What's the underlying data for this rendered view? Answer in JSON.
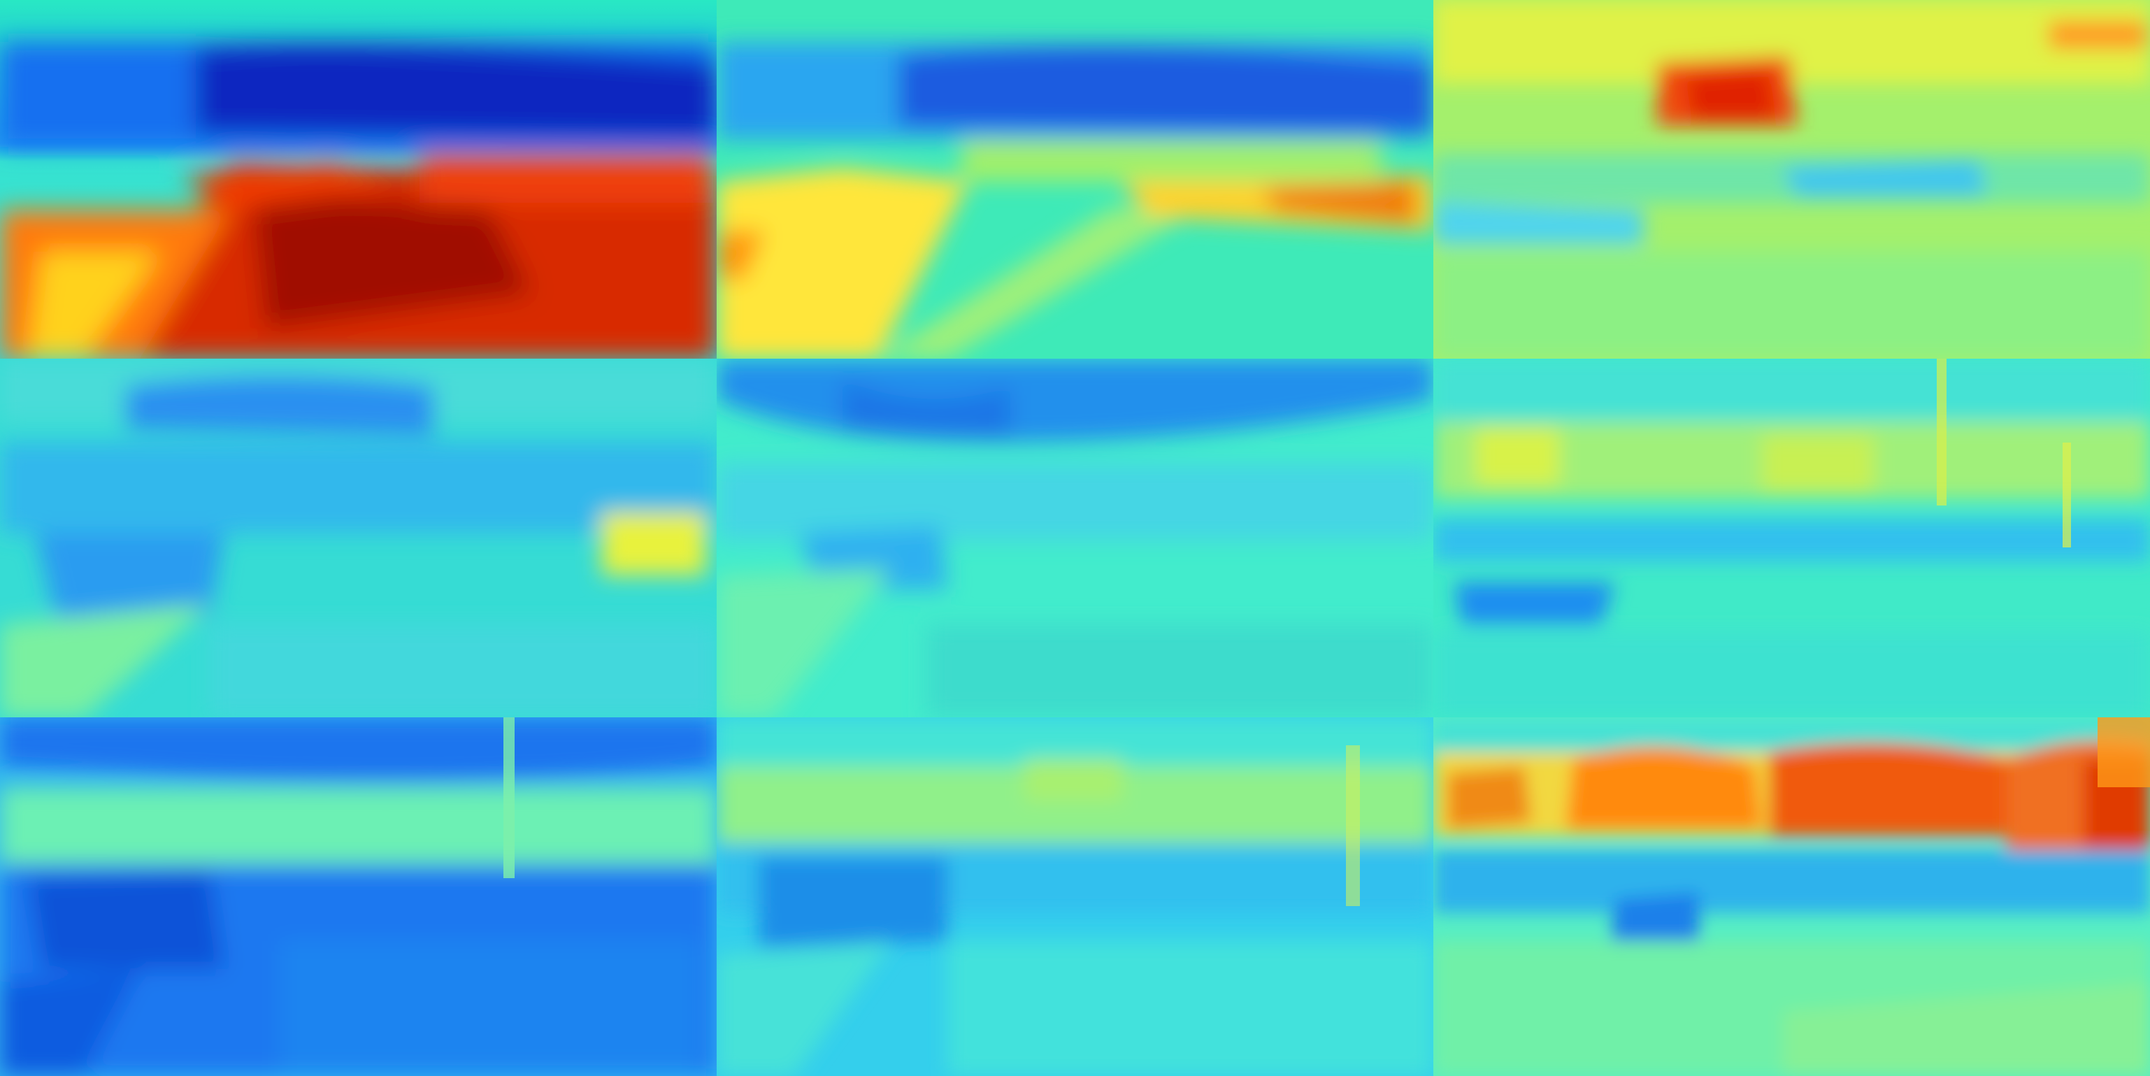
{
  "figure": {
    "colormap": "jet",
    "rows": 3,
    "cols": 3,
    "panels": [
      {
        "id": "r1c1",
        "base": "#27e6c8",
        "sky": "#0a2fd0",
        "ground": "#d81f00",
        "buildings": "#1666ee",
        "accent": "#ffd21f"
      },
      {
        "id": "r1c2",
        "base": "#3ff0b8",
        "sky": "#1f74e6",
        "ground": "#ffe83a",
        "buildings": "#2a7ff0",
        "accent": "#f57a00"
      },
      {
        "id": "r1c3",
        "base": "#a9f06a",
        "sky": "#e3f245",
        "ground": "#9cf06c",
        "buildings": "#f0561a",
        "accent": "#4fd4ee"
      },
      {
        "id": "r2c1",
        "base": "#32dcd8",
        "sky": "#1d9ef0",
        "ground": "#58f0c0",
        "buildings": "#3aa6f0",
        "accent": "#f0f03a"
      },
      {
        "id": "r2c2",
        "base": "#40ecc8",
        "sky": "#1f86ea",
        "ground": "#5ef2b8",
        "buildings": "#2fb0f0",
        "accent": "#2a9cf0"
      },
      {
        "id": "r2c3",
        "base": "#38e8cc",
        "sky": "#4fe8d0",
        "ground": "#52efc2",
        "buildings": "#c0f04a",
        "accent": "#1f8ef0"
      },
      {
        "id": "r3c1",
        "base": "#2fb7f0",
        "sky": "#1a70f0",
        "ground": "#1470ee",
        "buildings": "#64f2b4",
        "accent": "#0f4fd8"
      },
      {
        "id": "r3c2",
        "base": "#32c8f0",
        "sky": "#44e4d6",
        "ground": "#3ad8e8",
        "buildings": "#9cf07a",
        "accent": "#1a8ae8"
      },
      {
        "id": "r3c3",
        "base": "#4ff0c4",
        "sky": "#3fe0d6",
        "ground": "#7af09c",
        "buildings": "#f0701a",
        "accent": "#1f8ce8"
      }
    ]
  }
}
